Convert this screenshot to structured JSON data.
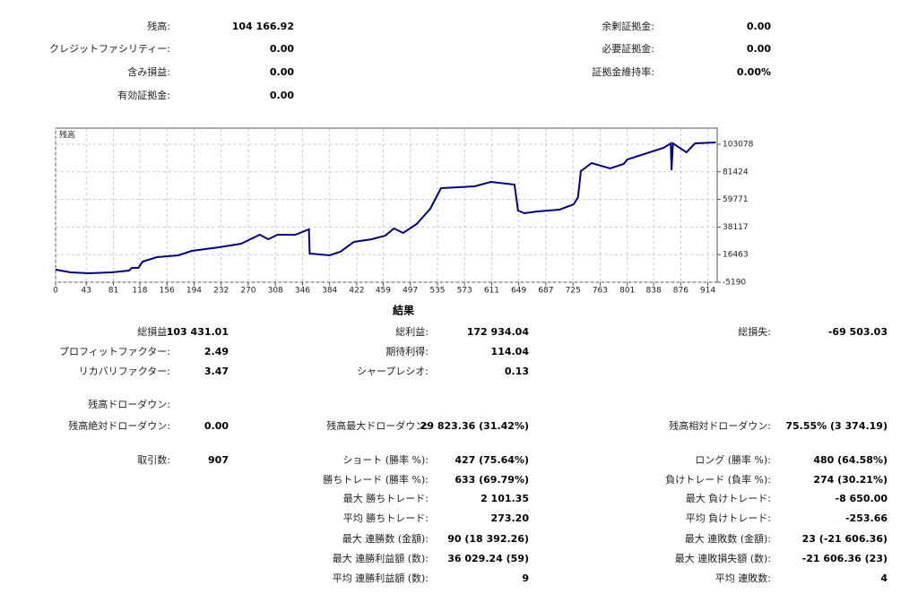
{
  "summary": {
    "left": [
      {
        "label": "残高:",
        "value": "104 166.92"
      },
      {
        "label": "クレジットファシリティー:",
        "value": "0.00"
      },
      {
        "label": "含み損益:",
        "value": "0.00"
      },
      {
        "label": "有効証拠金:",
        "value": "0.00"
      }
    ],
    "right": [
      {
        "label": "余剰証拠金:",
        "value": "0.00"
      },
      {
        "label": "必要証拠金:",
        "value": "0.00"
      },
      {
        "label": "証拠金維持率:",
        "value": "0.00%"
      }
    ]
  },
  "chart_data": {
    "type": "line",
    "title": "残高",
    "color": "#00008b",
    "grid": true,
    "x": [
      0,
      21,
      47,
      78,
      103,
      107,
      116,
      122,
      142,
      172,
      191,
      229,
      260,
      286,
      298,
      311,
      336,
      355,
      356,
      384,
      399,
      418,
      443,
      462,
      474,
      487,
      506,
      525,
      540,
      587,
      610,
      643,
      648,
      657,
      675,
      706,
      726,
      732,
      736,
      751,
      777,
      796,
      801,
      852,
      862,
      863,
      865,
      884,
      896,
      925
    ],
    "values": [
      4650,
      2540,
      1840,
      2540,
      3950,
      6060,
      6060,
      10980,
      14490,
      15900,
      19420,
      22230,
      25040,
      32070,
      28550,
      32070,
      32070,
      36290,
      17310,
      15900,
      18710,
      26450,
      28550,
      31370,
      36990,
      33480,
      40510,
      52460,
      68630,
      70030,
      73550,
      71440,
      51050,
      48940,
      50350,
      51750,
      55970,
      61600,
      81980,
      88310,
      84090,
      87610,
      91120,
      100260,
      103780,
      82690,
      103780,
      96750,
      103780,
      104480
    ],
    "xlim": [
      0,
      927
    ],
    "ylim": [
      -5190,
      115730
    ],
    "xticks": [
      0,
      43,
      81,
      118,
      156,
      194,
      232,
      270,
      308,
      346,
      384,
      422,
      459,
      497,
      535,
      573,
      611,
      649,
      687,
      725,
      763,
      801,
      838,
      876,
      914
    ],
    "yticks": [
      -5190,
      16463,
      38117,
      59771,
      81424,
      103078
    ]
  },
  "results": {
    "title": "結果",
    "rows": [
      [
        {
          "label": "総損益:",
          "value": "103 431.01"
        },
        {
          "label": "総利益:",
          "value": "172 934.04"
        },
        {
          "label": "総損失:",
          "value": "-69 503.03"
        }
      ],
      [
        {
          "label": "プロフィットファクター:",
          "value": "2.49"
        },
        {
          "label": "期待利得:",
          "value": "114.04"
        },
        null
      ],
      [
        {
          "label": "リカバリファクター:",
          "value": "3.47"
        },
        {
          "label": "シャープレシオ:",
          "value": "0.13"
        },
        null
      ],
      [
        {
          "label": "残高ドローダウン:"
        },
        null,
        null
      ],
      [
        {
          "label": "残高絶対ドローダウン:",
          "value": "0.00"
        },
        {
          "label": "残高最大ドローダウン:",
          "value": "29 823.36 (31.42%)"
        },
        {
          "label": "残高相対ドローダウン:",
          "value": "75.55% (3 374.19)"
        }
      ],
      [
        {
          "label": "取引数:",
          "value": "907"
        },
        {
          "label": "ショート (勝率 %):",
          "value": "427 (75.64%)"
        },
        {
          "label": "ロング (勝率 %):",
          "value": "480 (64.58%)"
        }
      ],
      [
        null,
        {
          "label": "勝ちトレード (勝率 %):",
          "value": "633 (69.79%)"
        },
        {
          "label": "負けトレード (負率 %):",
          "value": "274 (30.21%)"
        }
      ],
      [
        null,
        {
          "label": "最大 勝ちトレード:",
          "value": "2 101.35"
        },
        {
          "label": "最大 負けトレード:",
          "value": "-8 650.00"
        }
      ],
      [
        null,
        {
          "label": "平均 勝ちトレード:",
          "value": "273.20"
        },
        {
          "label": "平均 負けトレード:",
          "value": "-253.66"
        }
      ],
      [
        null,
        {
          "label": "最大 連勝数 (金額):",
          "value": "90 (18 392.26)"
        },
        {
          "label": "最大 連敗数 (金額):",
          "value": "23 (-21 606.36)"
        }
      ],
      [
        null,
        {
          "label": "最大 連勝利益額 (数):",
          "value": "36 029.24 (59)"
        },
        {
          "label": "最大 連敗損失額 (数):",
          "value": "-21 606.36 (23)"
        }
      ],
      [
        null,
        {
          "label": "平均 連勝利益額 (数):",
          "value": "9"
        },
        {
          "label": "平均 連敗数:",
          "value": "4"
        }
      ]
    ]
  }
}
